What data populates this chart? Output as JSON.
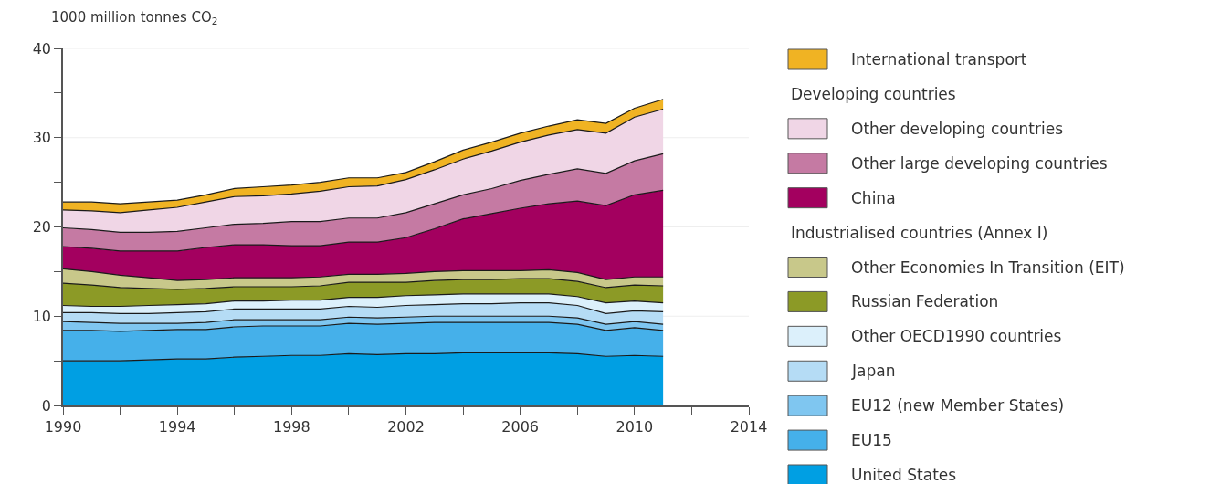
{
  "chart_data": {
    "type": "area",
    "stacked": true,
    "ylabel": "1000 million tonnes CO$_{2}$",
    "x": [
      1990,
      1991,
      1992,
      1993,
      1994,
      1995,
      1996,
      1997,
      1998,
      1999,
      2000,
      2001,
      2002,
      2003,
      2004,
      2005,
      2006,
      2007,
      2008,
      2009,
      2010,
      2011
    ],
    "series": [
      {
        "name": "United States",
        "color": "#009fe3",
        "values": [
          5.0,
          5.0,
          5.0,
          5.1,
          5.2,
          5.2,
          5.4,
          5.5,
          5.6,
          5.6,
          5.8,
          5.7,
          5.8,
          5.8,
          5.9,
          5.9,
          5.9,
          5.9,
          5.8,
          5.5,
          5.6,
          5.5
        ]
      },
      {
        "name": "EU15",
        "color": "#45b0ea",
        "values": [
          3.4,
          3.4,
          3.3,
          3.3,
          3.3,
          3.3,
          3.4,
          3.4,
          3.3,
          3.3,
          3.4,
          3.4,
          3.4,
          3.5,
          3.4,
          3.4,
          3.4,
          3.4,
          3.3,
          2.9,
          3.1,
          2.9
        ]
      },
      {
        "name": "EU12 (new Member States)",
        "color": "#7fc6f0",
        "values": [
          1.0,
          0.9,
          0.9,
          0.8,
          0.7,
          0.8,
          0.8,
          0.7,
          0.7,
          0.7,
          0.7,
          0.7,
          0.7,
          0.7,
          0.7,
          0.7,
          0.7,
          0.7,
          0.7,
          0.7,
          0.7,
          0.7
        ]
      },
      {
        "name": "Japan",
        "color": "#b5dcf5",
        "values": [
          1.0,
          1.1,
          1.1,
          1.1,
          1.2,
          1.2,
          1.2,
          1.2,
          1.2,
          1.2,
          1.2,
          1.2,
          1.3,
          1.3,
          1.4,
          1.4,
          1.5,
          1.5,
          1.4,
          1.2,
          1.2,
          1.4
        ]
      },
      {
        "name": "Other OECD1990 countries",
        "color": "#dcf0fb",
        "values": [
          0.8,
          0.7,
          0.8,
          0.9,
          0.9,
          0.9,
          0.9,
          0.9,
          1.0,
          1.0,
          1.0,
          1.1,
          1.1,
          1.1,
          1.1,
          1.1,
          1.0,
          1.0,
          1.0,
          1.2,
          1.1,
          1.0
        ]
      },
      {
        "name": "Russian Federation",
        "color": "#8c9a26",
        "values": [
          2.5,
          2.4,
          2.1,
          1.9,
          1.7,
          1.7,
          1.6,
          1.6,
          1.5,
          1.6,
          1.7,
          1.7,
          1.5,
          1.6,
          1.6,
          1.6,
          1.7,
          1.7,
          1.7,
          1.7,
          1.8,
          1.9
        ]
      },
      {
        "name": "Other Economies In Transition (EIT)",
        "color": "#c8c88a",
        "values": [
          1.6,
          1.5,
          1.4,
          1.2,
          1.0,
          1.0,
          1.0,
          1.0,
          1.0,
          1.0,
          0.9,
          0.9,
          1.0,
          1.0,
          1.0,
          1.0,
          0.9,
          1.0,
          1.0,
          0.9,
          0.9,
          1.0
        ]
      },
      {
        "name": "China",
        "color": "#a3005f",
        "values": [
          2.5,
          2.6,
          2.7,
          3.0,
          3.3,
          3.6,
          3.7,
          3.7,
          3.6,
          3.5,
          3.6,
          3.6,
          4.0,
          4.8,
          5.8,
          6.4,
          7.0,
          7.4,
          8.0,
          8.3,
          9.2,
          9.7
        ]
      },
      {
        "name": "Other large developing countries",
        "color": "#c57aa3",
        "values": [
          2.1,
          2.1,
          2.1,
          2.1,
          2.2,
          2.2,
          2.3,
          2.4,
          2.7,
          2.7,
          2.7,
          2.7,
          2.8,
          2.8,
          2.7,
          2.8,
          3.1,
          3.3,
          3.6,
          3.6,
          3.8,
          4.1
        ]
      },
      {
        "name": "Other developing countries",
        "color": "#f0d6e6",
        "values": [
          2.0,
          2.1,
          2.2,
          2.5,
          2.7,
          2.9,
          3.1,
          3.1,
          3.1,
          3.4,
          3.5,
          3.6,
          3.7,
          3.8,
          4.0,
          4.2,
          4.3,
          4.4,
          4.4,
          4.5,
          4.9,
          5.0
        ]
      },
      {
        "name": "International transport",
        "color": "#f0b323",
        "values": [
          0.9,
          1.0,
          1.0,
          0.9,
          0.8,
          0.8,
          0.9,
          1.0,
          1.0,
          1.0,
          1.0,
          0.9,
          0.8,
          0.9,
          1.0,
          1.0,
          1.0,
          1.0,
          1.1,
          1.1,
          1.0,
          1.1
        ]
      }
    ],
    "annotations": [
      "Developing countries",
      "Industrialised countries (Annex I)"
    ],
    "xlim": [
      1990,
      2014
    ],
    "xticks": [
      1990,
      {
        "value": 1992,
        "label": null
      },
      1994,
      {
        "value": 1996,
        "label": null
      },
      1998,
      {
        "value": 2000,
        "label": null
      },
      2002,
      {
        "value": 2004,
        "label": null
      },
      2006,
      {
        "value": 2008,
        "label": null
      },
      2010,
      {
        "value": 2012,
        "label": null
      },
      2014
    ],
    "ylim": [
      0,
      40
    ],
    "yticks": [
      0,
      {
        "value": 5,
        "label": null
      },
      10,
      {
        "value": 15,
        "label": null
      },
      20,
      {
        "value": 25,
        "label": null
      },
      30,
      {
        "value": 35,
        "label": null
      },
      40
    ],
    "grid": "y",
    "legend": "right"
  }
}
